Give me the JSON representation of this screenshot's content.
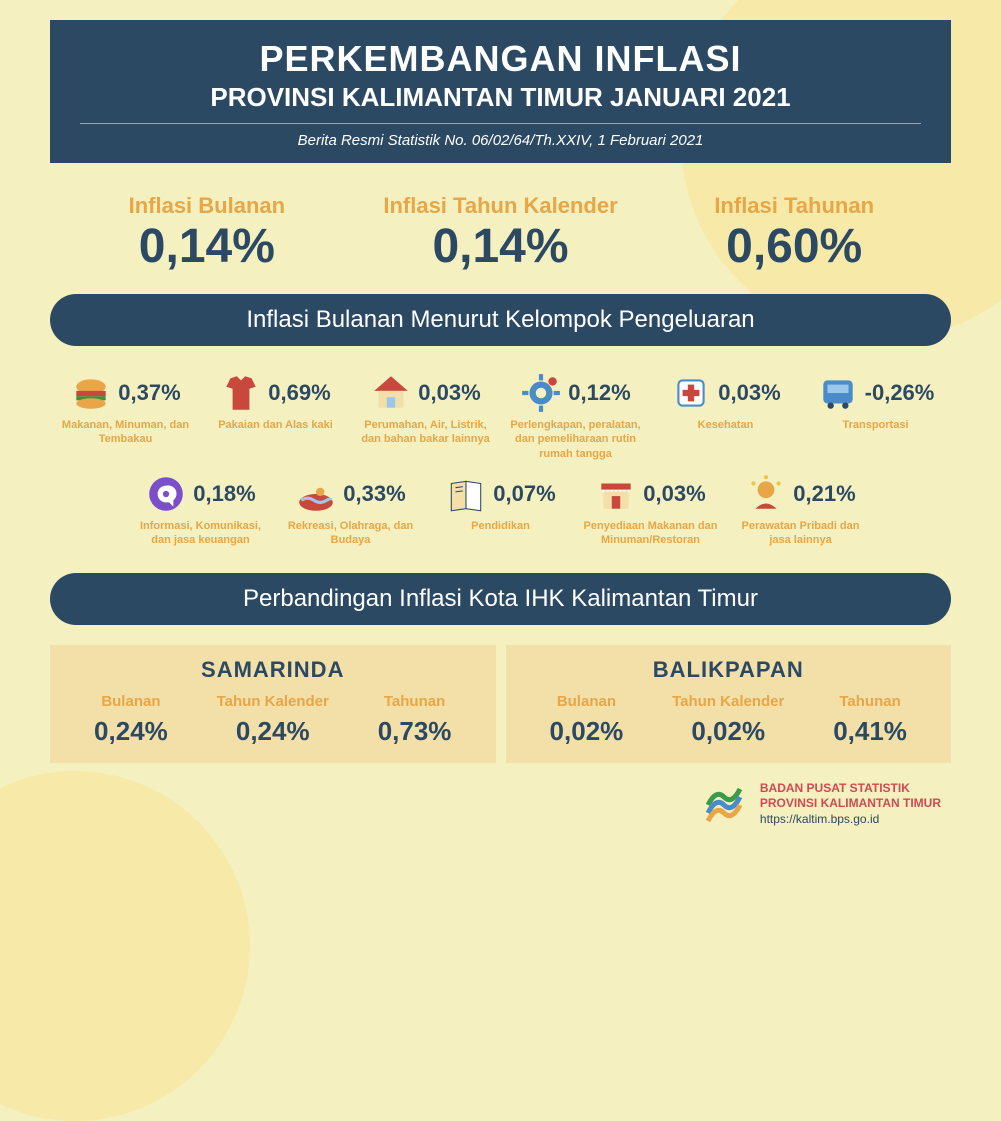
{
  "colors": {
    "background": "#f5f0c0",
    "bgAccent": "#f7e9a8",
    "primary": "#2c4964",
    "accent": "#e8a646",
    "cityBg": "#f3dfa8",
    "footerRed": "#d04a52"
  },
  "header": {
    "title": "PERKEMBANGAN INFLASI",
    "subtitle": "PROVINSI KALIMANTAN TIMUR JANUARI 2021",
    "note": "Berita Resmi Statistik No. 06/02/64/Th.XXIV, 1 Februari 2021"
  },
  "topFigures": [
    {
      "label": "Inflasi Bulanan",
      "value": "0,14%"
    },
    {
      "label": "Inflasi Tahun Kalender",
      "value": "0,14%"
    },
    {
      "label": "Inflasi Tahunan",
      "value": "0,60%"
    }
  ],
  "categoriesBand": "Inflasi Bulanan Menurut Kelompok Pengeluaran",
  "categories": [
    {
      "icon": "burger",
      "value": "0,37%",
      "label": "Makanan, Minuman, dan Tembakau"
    },
    {
      "icon": "shirt",
      "value": "0,69%",
      "label": "Pakaian dan Alas kaki"
    },
    {
      "icon": "house",
      "value": "0,03%",
      "label": "Perumahan, Air, Listrik, dan bahan bakar lainnya"
    },
    {
      "icon": "gear",
      "value": "0,12%",
      "label": "Perlengkapan, peralatan, dan pemeliharaan rutin rumah tangga"
    },
    {
      "icon": "health",
      "value": "0,03%",
      "label": "Kesehatan"
    },
    {
      "icon": "bus",
      "value": "-0,26%",
      "label": "Transportasi"
    },
    {
      "icon": "chat",
      "value": "0,18%",
      "label": "Informasi, Komunikasi, dan jasa keuangan"
    },
    {
      "icon": "swim",
      "value": "0,33%",
      "label": "Rekreasi, Olahraga, dan Budaya"
    },
    {
      "icon": "book",
      "value": "0,07%",
      "label": "Pendidikan"
    },
    {
      "icon": "shop",
      "value": "0,03%",
      "label": "Penyediaan Makanan dan Minuman/Restoran"
    },
    {
      "icon": "care",
      "value": "0,21%",
      "label": "Perawatan Pribadi dan jasa lainnya"
    }
  ],
  "citiesBand": "Perbandingan Inflasi Kota IHK Kalimantan Timur",
  "cities": [
    {
      "name": "SAMARINDA",
      "cols": [
        {
          "label": "Bulanan",
          "value": "0,24%"
        },
        {
          "label": "Tahun Kalender",
          "value": "0,24%"
        },
        {
          "label": "Tahunan",
          "value": "0,73%"
        }
      ]
    },
    {
      "name": "BALIKPAPAN",
      "cols": [
        {
          "label": "Bulanan",
          "value": "0,02%"
        },
        {
          "label": "Tahun Kalender",
          "value": "0,02%"
        },
        {
          "label": "Tahunan",
          "value": "0,41%"
        }
      ]
    }
  ],
  "footer": {
    "org1": "BADAN PUSAT STATISTIK",
    "org2": "PROVINSI KALIMANTAN TIMUR",
    "url": "https://kaltim.bps.go.id"
  }
}
